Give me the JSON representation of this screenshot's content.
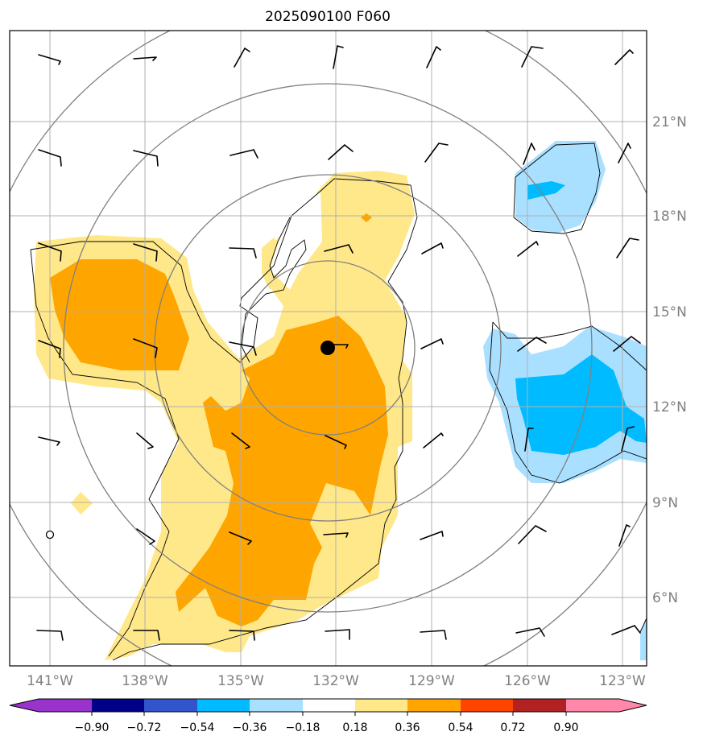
{
  "title": "2025090100 F060",
  "map": {
    "lon_range": [
      -142,
      -122.5
    ],
    "lat_range": [
      3.5,
      23.5
    ],
    "lon_ticks": [
      {
        "value": -141,
        "label": "141°W"
      },
      {
        "value": -138,
        "label": "138°W"
      },
      {
        "value": -135,
        "label": "135°W"
      },
      {
        "value": -132,
        "label": "132°W"
      },
      {
        "value": -129,
        "label": "129°W"
      },
      {
        "value": -126,
        "label": "126°W"
      },
      {
        "value": -123,
        "label": "123°W"
      }
    ],
    "lat_ticks": [
      {
        "value": 21,
        "label": "21°N"
      },
      {
        "value": 18,
        "label": "18°N"
      },
      {
        "value": 15,
        "label": "15°N"
      },
      {
        "value": 12,
        "label": "12°N"
      },
      {
        "value": 9,
        "label": "9°N"
      },
      {
        "value": 6,
        "label": "6°N"
      }
    ],
    "grid": true,
    "center": {
      "lon": -132.3,
      "lat": 13.8
    },
    "range_rings_deg": [
      3,
      5.5,
      8.5,
      11.5
    ],
    "open_marker": {
      "lon": -141,
      "lat": 8.5
    }
  },
  "colorbar": {
    "levels": [
      "−0.90",
      "−0.72",
      "−0.54",
      "−0.36",
      "−0.18",
      "0.18",
      "0.36",
      "0.54",
      "0.72",
      "0.90"
    ],
    "colors": [
      "#9933cc",
      "#000088",
      "#3355cc",
      "#00bbff",
      "#aae0ff",
      "#ffffff",
      "#ffe88a",
      "#ffa500",
      "#ff4400",
      "#b22222",
      "#ff88aa"
    ],
    "extend": "both"
  },
  "colors": {
    "positive_light": "#ffe88a",
    "positive_mid": "#ffa500",
    "negative_light": "#aae0ff",
    "negative_mid": "#00bbff",
    "grid": "#b0b0b0",
    "rings": "#808080"
  }
}
